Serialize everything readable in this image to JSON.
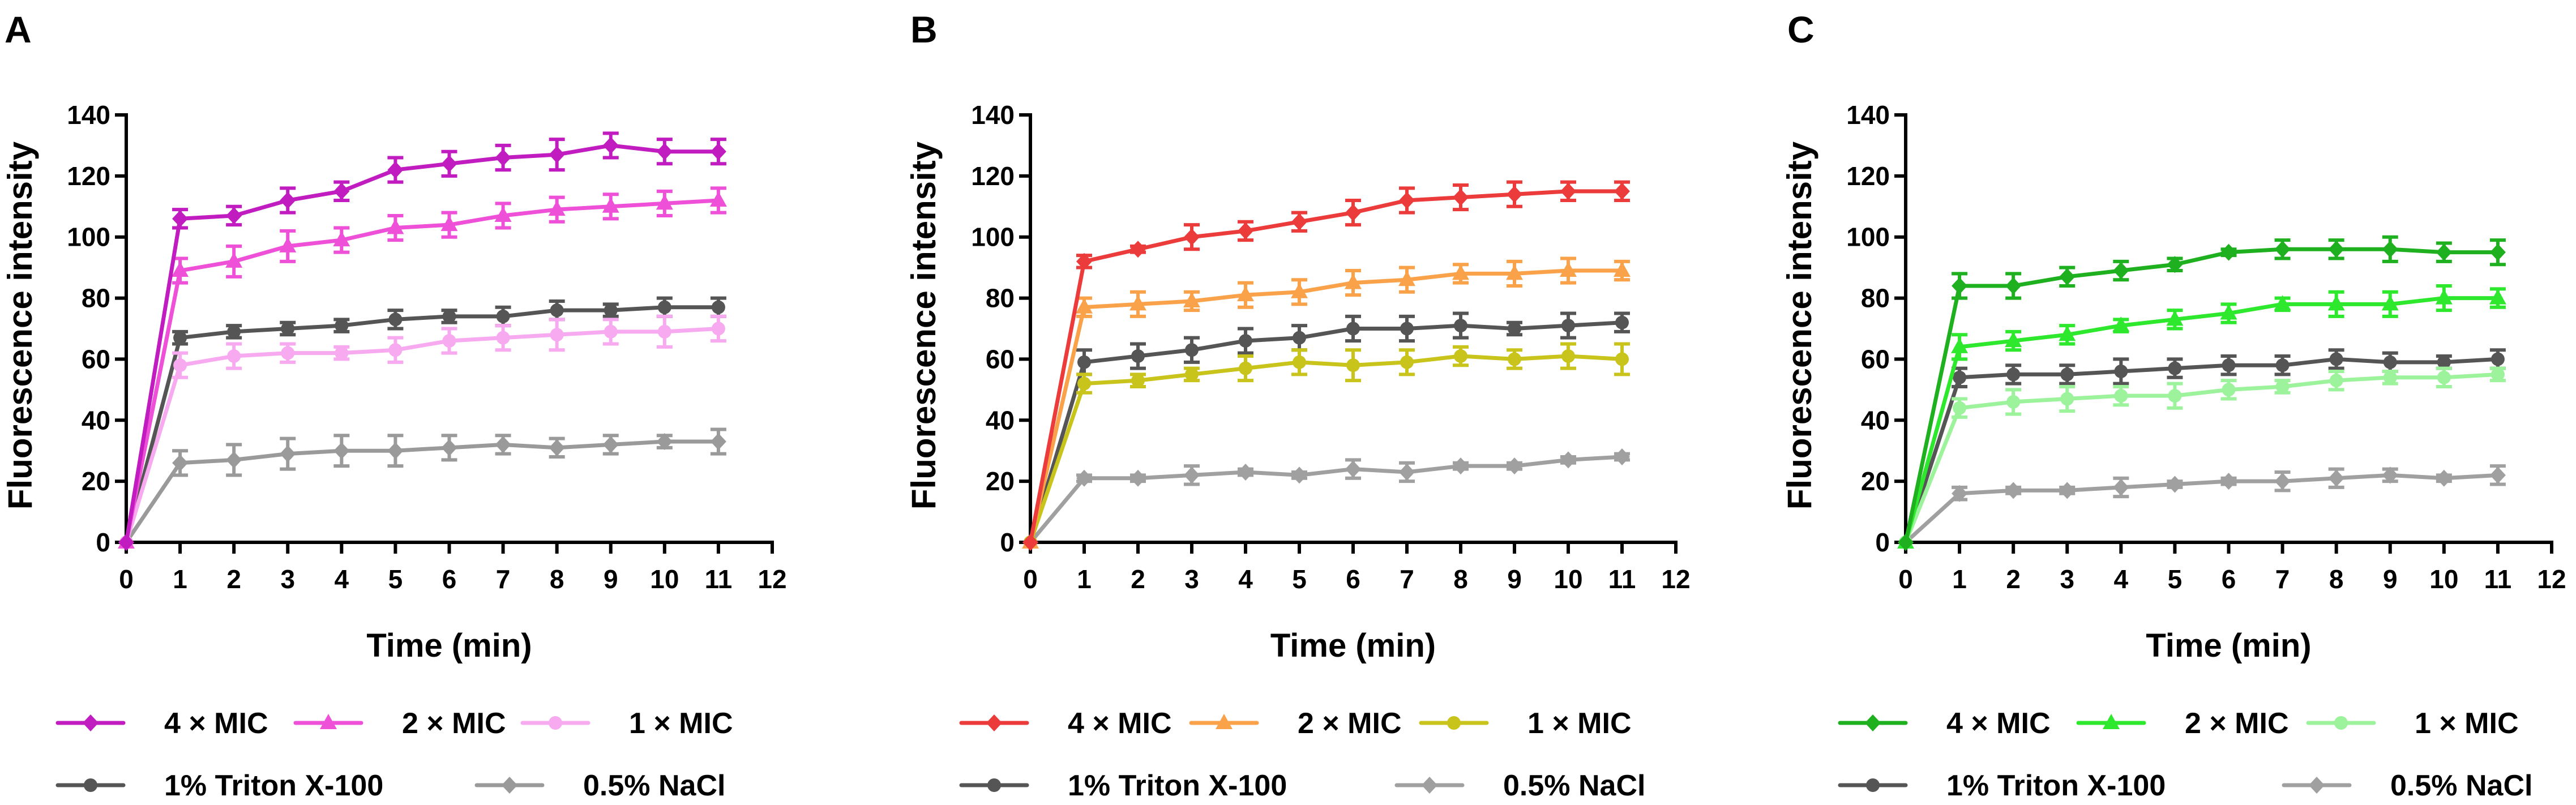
{
  "chart_data": [
    {
      "type": "line",
      "panel_label": "A",
      "xlabel": "Time (min)",
      "ylabel": "Fluorescence intensity",
      "xlim": [
        0,
        12
      ],
      "ylim": [
        0,
        140
      ],
      "xticks": [
        0,
        1,
        2,
        3,
        4,
        5,
        6,
        7,
        8,
        9,
        10,
        11,
        12
      ],
      "yticks": [
        0,
        20,
        40,
        60,
        80,
        100,
        120,
        140
      ],
      "x": [
        0,
        1,
        2,
        3,
        4,
        5,
        6,
        7,
        8,
        9,
        10,
        11
      ],
      "series": [
        {
          "name": "4 × MIC",
          "color": "#c11cc0",
          "marker": "diamond",
          "values": [
            0,
            106,
            107,
            112,
            115,
            122,
            124,
            126,
            127,
            130,
            128,
            128
          ],
          "error": [
            0,
            3,
            3,
            4,
            3,
            4,
            4,
            4,
            5,
            4,
            4,
            4
          ]
        },
        {
          "name": "2 × MIC",
          "color": "#ee50d8",
          "marker": "triangle",
          "values": [
            0,
            89,
            92,
            97,
            99,
            103,
            104,
            107,
            109,
            110,
            111,
            112
          ],
          "error": [
            0,
            4,
            5,
            5,
            4,
            4,
            4,
            4,
            4,
            4,
            4,
            4
          ]
        },
        {
          "name": "1 × MIC",
          "color": "#f7aaf0",
          "marker": "circle",
          "values": [
            0,
            58,
            61,
            62,
            62,
            63,
            66,
            67,
            68,
            69,
            69,
            70
          ],
          "error": [
            0,
            4,
            4,
            3,
            2,
            4,
            4,
            4,
            5,
            4,
            5,
            4
          ]
        },
        {
          "name": "1% Triton X-100",
          "color": "#555555",
          "marker": "circle",
          "values": [
            0,
            67,
            69,
            70,
            71,
            73,
            74,
            74,
            76,
            76,
            77,
            77
          ],
          "error": [
            0,
            2,
            2,
            2,
            2,
            3,
            2,
            3,
            3,
            2,
            3,
            3
          ]
        },
        {
          "name": "0.5% NaCl",
          "color": "#9a9a9a",
          "marker": "diamond",
          "values": [
            0,
            26,
            27,
            29,
            30,
            30,
            31,
            32,
            31,
            32,
            33,
            33
          ],
          "error": [
            0,
            4,
            5,
            5,
            5,
            5,
            4,
            3,
            3,
            3,
            2,
            4
          ]
        }
      ]
    },
    {
      "type": "line",
      "panel_label": "B",
      "xlabel": "Time (min)",
      "ylabel": "Fluorescence intensity",
      "xlim": [
        0,
        12
      ],
      "ylim": [
        0,
        140
      ],
      "xticks": [
        0,
        1,
        2,
        3,
        4,
        5,
        6,
        7,
        8,
        9,
        10,
        11,
        12
      ],
      "yticks": [
        0,
        20,
        40,
        60,
        80,
        100,
        120,
        140
      ],
      "x": [
        0,
        1,
        2,
        3,
        4,
        5,
        6,
        7,
        8,
        9,
        10,
        11
      ],
      "series": [
        {
          "name": "4 × MIC",
          "color": "#ec3b3b",
          "marker": "diamond",
          "values": [
            0,
            92,
            96,
            100,
            102,
            105,
            108,
            112,
            113,
            114,
            115,
            115
          ],
          "error": [
            0,
            2,
            1,
            4,
            3,
            3,
            4,
            4,
            4,
            4,
            3,
            3
          ]
        },
        {
          "name": "2 × MIC",
          "color": "#f9a24a",
          "marker": "triangle",
          "values": [
            0,
            77,
            78,
            79,
            81,
            82,
            85,
            86,
            88,
            88,
            89,
            89
          ],
          "error": [
            0,
            3,
            4,
            3,
            4,
            4,
            4,
            4,
            3,
            4,
            4,
            3
          ]
        },
        {
          "name": "1 × MIC",
          "color": "#c9c41c",
          "marker": "circle",
          "values": [
            0,
            52,
            53,
            55,
            57,
            59,
            58,
            59,
            61,
            60,
            61,
            60
          ],
          "error": [
            0,
            3,
            2,
            2,
            4,
            4,
            5,
            4,
            3,
            3,
            4,
            5
          ]
        },
        {
          "name": "1% Triton X-100",
          "color": "#555555",
          "marker": "circle",
          "values": [
            0,
            59,
            61,
            63,
            66,
            67,
            70,
            70,
            71,
            70,
            71,
            72
          ],
          "error": [
            0,
            4,
            4,
            4,
            4,
            4,
            4,
            4,
            4,
            2,
            4,
            3
          ]
        },
        {
          "name": "0.5% NaCl",
          "color": "#a0a0a0",
          "marker": "diamond",
          "values": [
            0,
            21,
            21,
            22,
            23,
            22,
            24,
            23,
            25,
            25,
            27,
            28
          ],
          "error": [
            0,
            1,
            1,
            3,
            1,
            1,
            3,
            3,
            1,
            1,
            1,
            1
          ]
        }
      ]
    },
    {
      "type": "line",
      "panel_label": "C",
      "xlabel": "Time (min)",
      "ylabel": "Fluorescence intensity",
      "xlim": [
        0,
        12
      ],
      "ylim": [
        0,
        140
      ],
      "xticks": [
        0,
        1,
        2,
        3,
        4,
        5,
        6,
        7,
        8,
        9,
        10,
        11,
        12
      ],
      "yticks": [
        0,
        20,
        40,
        60,
        80,
        100,
        120,
        140
      ],
      "x": [
        0,
        1,
        2,
        3,
        4,
        5,
        6,
        7,
        8,
        9,
        10,
        11
      ],
      "series": [
        {
          "name": "4 × MIC",
          "color": "#1fb01f",
          "marker": "diamond",
          "values": [
            0,
            84,
            84,
            87,
            89,
            91,
            95,
            96,
            96,
            96,
            95,
            95
          ],
          "error": [
            0,
            4,
            4,
            3,
            3,
            2,
            1,
            3,
            3,
            4,
            3,
            4
          ]
        },
        {
          "name": "2 × MIC",
          "color": "#2ee82e",
          "marker": "triangle",
          "values": [
            0,
            64,
            66,
            68,
            71,
            73,
            75,
            78,
            78,
            78,
            80,
            80
          ],
          "error": [
            0,
            4,
            3,
            3,
            2,
            3,
            3,
            2,
            4,
            4,
            4,
            3
          ]
        },
        {
          "name": "1 × MIC",
          "color": "#9cf39c",
          "marker": "circle",
          "values": [
            0,
            44,
            46,
            47,
            48,
            48,
            50,
            51,
            53,
            54,
            54,
            55
          ],
          "error": [
            0,
            3,
            4,
            4,
            3,
            4,
            3,
            2,
            3,
            2,
            3,
            2
          ]
        },
        {
          "name": "1% Triton X-100",
          "color": "#555555",
          "marker": "circle",
          "values": [
            0,
            54,
            55,
            55,
            56,
            57,
            58,
            58,
            60,
            59,
            59,
            60
          ],
          "error": [
            0,
            3,
            3,
            3,
            4,
            3,
            3,
            3,
            3,
            3,
            2,
            3
          ]
        },
        {
          "name": "0.5% NaCl",
          "color": "#a0a0a0",
          "marker": "diamond",
          "values": [
            0,
            16,
            17,
            17,
            18,
            19,
            20,
            20,
            21,
            22,
            21,
            22
          ],
          "error": [
            0,
            2,
            1,
            1,
            3,
            1,
            1,
            3,
            3,
            2,
            1,
            3
          ]
        }
      ]
    }
  ]
}
